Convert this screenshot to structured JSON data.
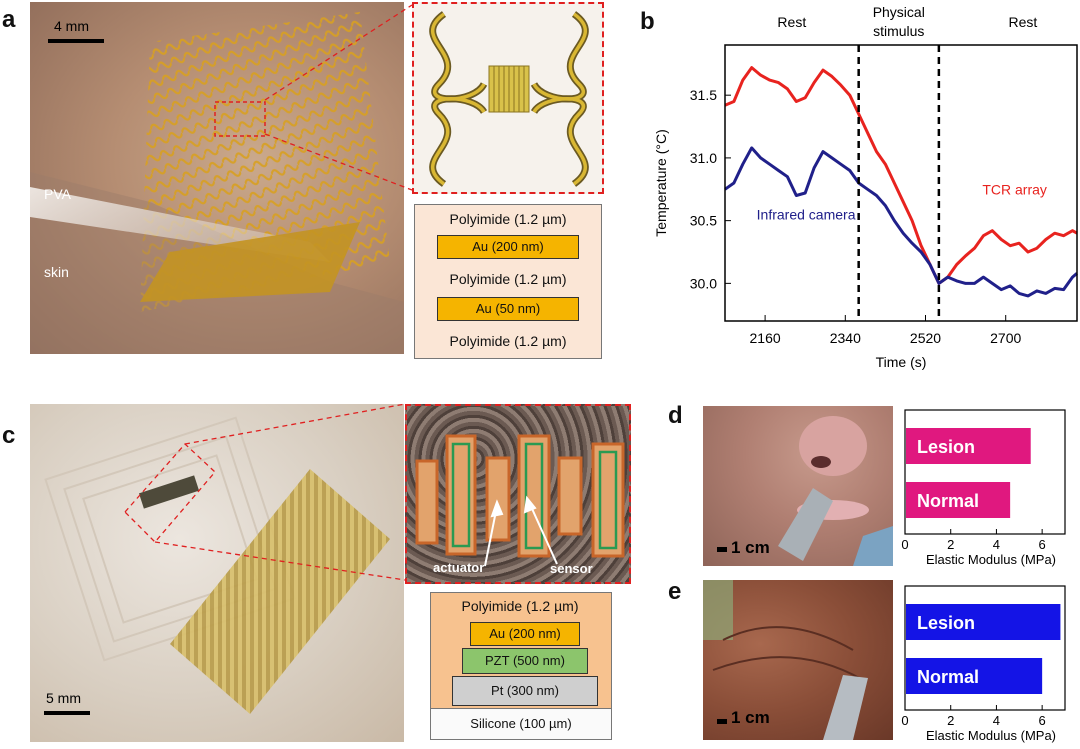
{
  "panels": {
    "a": {
      "label": "a",
      "scale_bar": "4 mm",
      "photo_labels": {
        "pva": "PVA",
        "skin": "skin"
      },
      "layers": [
        "Polyimide (1.2 µm)",
        "Au (200 nm)",
        "Polyimide (1.2 µm)",
        "Au (50 nm)",
        "Polyimide (1.2 µm)"
      ]
    },
    "b": {
      "label": "b"
    },
    "c": {
      "label": "c",
      "scale_bar": "5 mm",
      "inset_labels": {
        "actuator": "actuator",
        "sensor": "sensor"
      },
      "layers": [
        "Polyimide (1.2 µm)",
        "Au (200 nm)",
        "PZT (500 nm)",
        "Pt (300 nm)",
        "Silicone (100 µm)"
      ]
    },
    "d": {
      "label": "d",
      "scale_bar": "1 cm"
    },
    "e": {
      "label": "e",
      "scale_bar": "1 cm"
    }
  },
  "chart_data": [
    {
      "id": "b",
      "type": "line",
      "xlabel": "Time (s)",
      "ylabel": "Temperature (°C)",
      "xlim": [
        2070,
        2860
      ],
      "ylim": [
        29.7,
        31.9
      ],
      "xticks": [
        2160,
        2340,
        2520,
        2700
      ],
      "yticks": [
        "30.0",
        "30.5",
        "31.0",
        "31.5"
      ],
      "regions": [
        "Rest",
        "Physical stimulus",
        "Rest"
      ],
      "boundaries": [
        2370,
        2550
      ],
      "series": [
        {
          "name": "TCR array",
          "color": "#e8231f",
          "x": [
            2070,
            2090,
            2110,
            2130,
            2150,
            2170,
            2190,
            2210,
            2230,
            2250,
            2270,
            2290,
            2310,
            2330,
            2350,
            2370,
            2390,
            2410,
            2430,
            2450,
            2470,
            2490,
            2510,
            2530,
            2550,
            2570,
            2590,
            2610,
            2630,
            2650,
            2670,
            2690,
            2710,
            2730,
            2750,
            2770,
            2790,
            2810,
            2830,
            2850,
            2860
          ],
          "y": [
            31.42,
            31.45,
            31.62,
            31.72,
            31.66,
            31.62,
            31.6,
            31.55,
            31.45,
            31.48,
            31.6,
            31.7,
            31.65,
            31.58,
            31.5,
            31.35,
            31.2,
            31.05,
            30.95,
            30.8,
            30.65,
            30.5,
            30.3,
            30.15,
            30.0,
            30.05,
            30.15,
            30.22,
            30.28,
            30.38,
            30.42,
            30.35,
            30.3,
            30.32,
            30.25,
            30.28,
            30.35,
            30.4,
            30.38,
            30.42,
            30.4
          ]
        },
        {
          "name": "Infrared camera",
          "color": "#20208a",
          "x": [
            2070,
            2090,
            2110,
            2130,
            2150,
            2170,
            2190,
            2210,
            2230,
            2250,
            2270,
            2290,
            2310,
            2330,
            2350,
            2370,
            2390,
            2410,
            2430,
            2450,
            2470,
            2490,
            2510,
            2530,
            2550,
            2570,
            2590,
            2610,
            2630,
            2650,
            2670,
            2690,
            2710,
            2730,
            2750,
            2770,
            2790,
            2810,
            2830,
            2850,
            2860
          ],
          "y": [
            30.75,
            30.8,
            30.95,
            31.08,
            31.0,
            30.95,
            30.9,
            30.85,
            30.7,
            30.72,
            30.92,
            31.05,
            31.0,
            30.95,
            30.9,
            30.8,
            30.75,
            30.7,
            30.62,
            30.5,
            30.4,
            30.32,
            30.25,
            30.15,
            30.0,
            30.05,
            30.02,
            30.0,
            30.0,
            30.05,
            30.0,
            29.95,
            29.98,
            29.92,
            29.9,
            29.94,
            29.92,
            29.96,
            29.95,
            30.05,
            30.08
          ]
        }
      ],
      "annotations": {
        "tcr": "TCR array",
        "infrared": "Infrared camera"
      }
    },
    {
      "id": "d",
      "type": "bar",
      "orientation": "horizontal",
      "categories": [
        "Lesion",
        "Normal"
      ],
      "values": [
        5.5,
        4.6
      ],
      "xlabel": "Elastic Modulus (MPa)",
      "xlim": [
        0,
        7
      ],
      "xticks": [
        "0",
        "2",
        "4",
        "6"
      ],
      "colors": [
        "#e0187f",
        "#e0187f"
      ]
    },
    {
      "id": "e",
      "type": "bar",
      "orientation": "horizontal",
      "categories": [
        "Lesion",
        "Normal"
      ],
      "values": [
        6.8,
        6.0
      ],
      "xlabel": "Elastic Modulus (MPa)",
      "xlim": [
        0,
        7
      ],
      "xticks": [
        "0",
        "2",
        "4",
        "6"
      ],
      "colors": [
        "#1414e6",
        "#1414e6"
      ]
    }
  ]
}
